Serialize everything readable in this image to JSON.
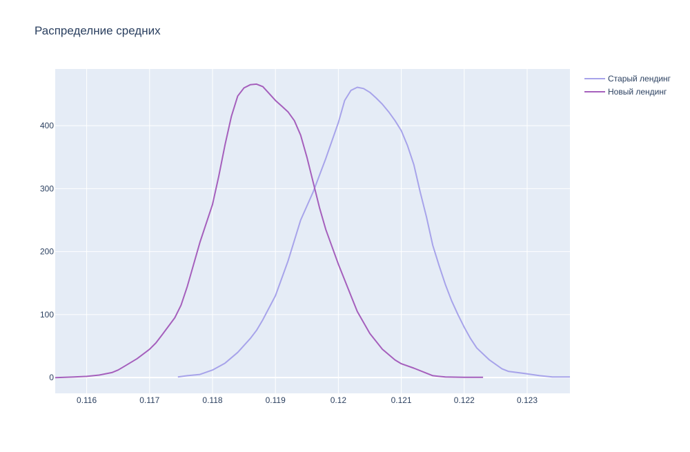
{
  "chart_data": {
    "type": "line",
    "title": "Распределние средних",
    "xlabel": "",
    "ylabel": "",
    "xlim": [
      0.1155,
      0.12368
    ],
    "ylim": [
      -25,
      490
    ],
    "x_ticks": [
      "0.116",
      "0.117",
      "0.118",
      "0.119",
      "0.12",
      "0.121",
      "0.122",
      "0.123"
    ],
    "x_tick_values": [
      0.116,
      0.117,
      0.118,
      0.119,
      0.12,
      0.121,
      0.122,
      0.123
    ],
    "y_ticks": [
      "0",
      "100",
      "200",
      "300",
      "400"
    ],
    "y_tick_values": [
      0,
      100,
      200,
      300,
      400
    ],
    "grid": true,
    "legend_position": "top-right",
    "background_color": "#E5ECF6",
    "series": [
      {
        "name": "Старый лендинг",
        "color": "#A7A3EA",
        "points": [
          [
            0.11745,
            1
          ],
          [
            0.1176,
            3
          ],
          [
            0.1178,
            5
          ],
          [
            0.118,
            12
          ],
          [
            0.1182,
            23
          ],
          [
            0.1184,
            40
          ],
          [
            0.1186,
            62
          ],
          [
            0.1187,
            75
          ],
          [
            0.1188,
            92
          ],
          [
            0.119,
            130
          ],
          [
            0.1192,
            185
          ],
          [
            0.1194,
            250
          ],
          [
            0.1196,
            295
          ],
          [
            0.1198,
            348
          ],
          [
            0.12,
            405
          ],
          [
            0.1201,
            440
          ],
          [
            0.1202,
            456
          ],
          [
            0.1203,
            461
          ],
          [
            0.1204,
            459
          ],
          [
            0.1205,
            453
          ],
          [
            0.1206,
            444
          ],
          [
            0.1207,
            434
          ],
          [
            0.1208,
            422
          ],
          [
            0.1209,
            408
          ],
          [
            0.121,
            392
          ],
          [
            0.1211,
            368
          ],
          [
            0.1212,
            338
          ],
          [
            0.1213,
            295
          ],
          [
            0.1214,
            255
          ],
          [
            0.1215,
            210
          ],
          [
            0.1216,
            178
          ],
          [
            0.1217,
            148
          ],
          [
            0.1218,
            122
          ],
          [
            0.1219,
            100
          ],
          [
            0.122,
            80
          ],
          [
            0.1221,
            62
          ],
          [
            0.1222,
            47
          ],
          [
            0.1224,
            28
          ],
          [
            0.1226,
            14
          ],
          [
            0.1227,
            10
          ],
          [
            0.123,
            6
          ],
          [
            0.1232,
            3
          ],
          [
            0.1234,
            1
          ],
          [
            0.12368,
            1
          ]
        ]
      },
      {
        "name": "Новый лендинг",
        "color": "#A55FBC",
        "points": [
          [
            0.1155,
            0
          ],
          [
            0.1158,
            1
          ],
          [
            0.116,
            2
          ],
          [
            0.1162,
            4
          ],
          [
            0.1164,
            8
          ],
          [
            0.1165,
            12
          ],
          [
            0.1166,
            18
          ],
          [
            0.1168,
            30
          ],
          [
            0.117,
            45
          ],
          [
            0.1171,
            55
          ],
          [
            0.1172,
            68
          ],
          [
            0.1174,
            95
          ],
          [
            0.1175,
            115
          ],
          [
            0.1176,
            145
          ],
          [
            0.1178,
            215
          ],
          [
            0.118,
            275
          ],
          [
            0.1181,
            320
          ],
          [
            0.1182,
            370
          ],
          [
            0.1183,
            415
          ],
          [
            0.1184,
            447
          ],
          [
            0.1185,
            460
          ],
          [
            0.1186,
            465
          ],
          [
            0.1187,
            466
          ],
          [
            0.1188,
            462
          ],
          [
            0.1189,
            451
          ],
          [
            0.119,
            440
          ],
          [
            0.1191,
            431
          ],
          [
            0.1192,
            422
          ],
          [
            0.1193,
            408
          ],
          [
            0.1194,
            385
          ],
          [
            0.1195,
            350
          ],
          [
            0.1196,
            310
          ],
          [
            0.1197,
            270
          ],
          [
            0.1198,
            235
          ],
          [
            0.12,
            180
          ],
          [
            0.1202,
            130
          ],
          [
            0.1203,
            105
          ],
          [
            0.1205,
            70
          ],
          [
            0.1207,
            45
          ],
          [
            0.1209,
            28
          ],
          [
            0.121,
            22
          ],
          [
            0.1212,
            15
          ],
          [
            0.1214,
            7
          ],
          [
            0.1215,
            3
          ],
          [
            0.1217,
            1
          ],
          [
            0.122,
            0.5
          ],
          [
            0.1223,
            0.5
          ]
        ]
      }
    ]
  }
}
